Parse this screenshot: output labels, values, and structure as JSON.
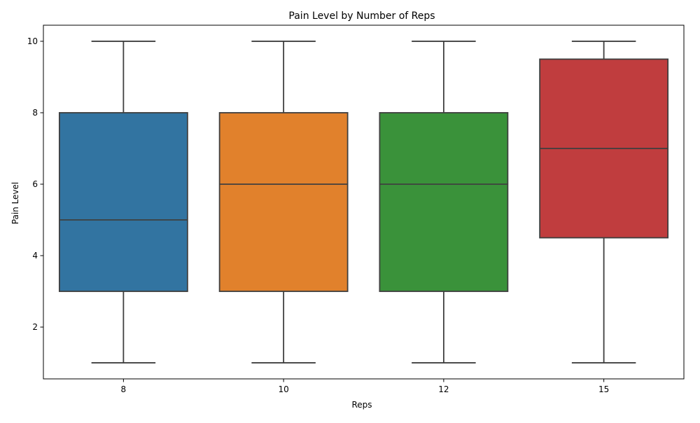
{
  "chart_data": {
    "type": "box",
    "title": "Pain Level by Number of Reps",
    "xlabel": "Reps",
    "ylabel": "Pain Level",
    "ylim": [
      0.55,
      10.45
    ],
    "yticks": [
      2,
      4,
      6,
      8,
      10
    ],
    "grid": false,
    "legend": "none",
    "categories": [
      "8",
      "10",
      "12",
      "15"
    ],
    "boxes": [
      {
        "category": "8",
        "min": 1,
        "q1": 3,
        "median": 5,
        "q3": 8,
        "max": 10,
        "color": "#3274a1"
      },
      {
        "category": "10",
        "min": 1,
        "q1": 3,
        "median": 6,
        "q3": 8,
        "max": 10,
        "color": "#e1812c"
      },
      {
        "category": "12",
        "min": 1,
        "q1": 3,
        "median": 6,
        "q3": 8,
        "max": 10,
        "color": "#3a923a"
      },
      {
        "category": "15",
        "min": 1,
        "q1": 4.5,
        "median": 7,
        "q3": 9.5,
        "max": 10,
        "color": "#c03d3e"
      }
    ],
    "line_color": "#3f3f3f"
  }
}
